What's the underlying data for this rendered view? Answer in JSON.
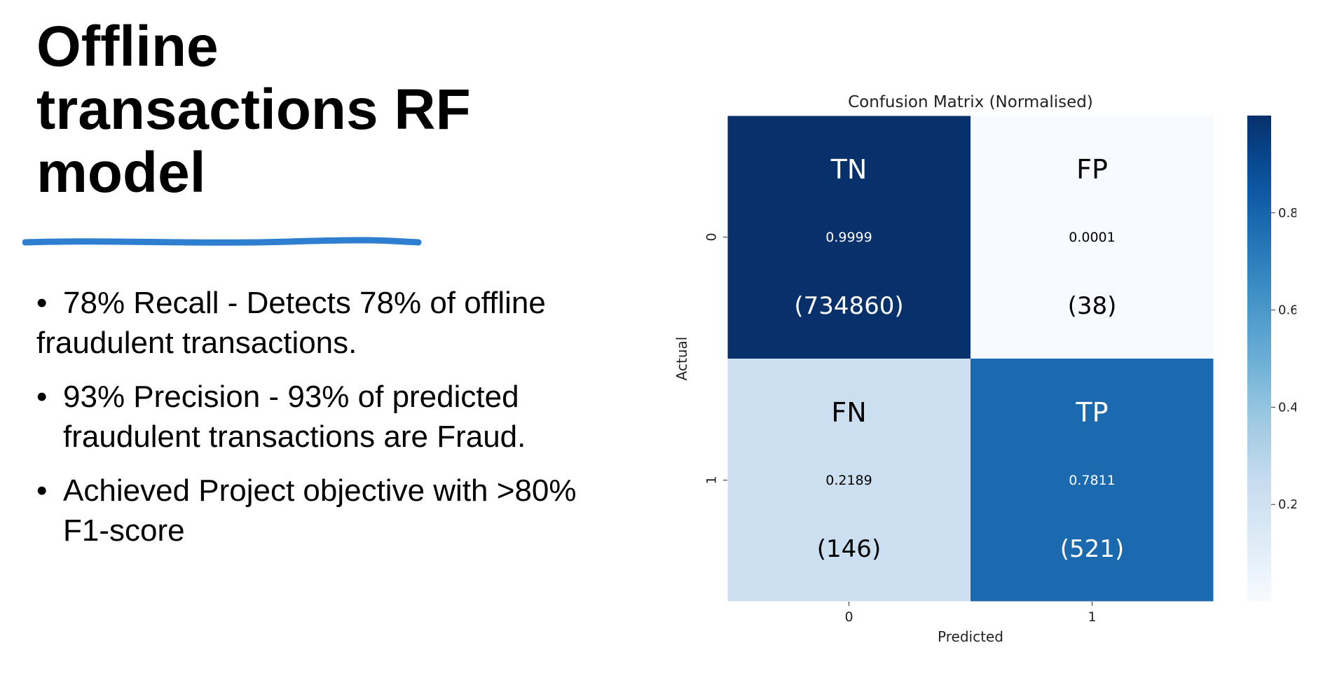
{
  "slide": {
    "title": "Offline transactions RF model",
    "bullets": [
      {
        "marker": "•",
        "text": "78% Recall - Detects 78% of offline fraudulent transactions."
      },
      {
        "marker": "•",
        "text": "93% Precision - 93% of predicted fraudulent transactions are Fraud."
      },
      {
        "marker": "•",
        "text": "Achieved Project objective with >80% F1-score"
      }
    ],
    "accent_color": "#2e7fcf"
  },
  "chart_data": {
    "type": "heatmap",
    "title": "Confusion Matrix (Normalised)",
    "xlabel": "Predicted",
    "ylabel": "Actual",
    "x_categories": [
      "0",
      "1"
    ],
    "y_categories": [
      "0",
      "1"
    ],
    "values": [
      [
        0.9999,
        0.0001
      ],
      [
        0.2189,
        0.7811
      ]
    ],
    "cell_labels": [
      [
        "TN",
        "FP"
      ],
      [
        "FN",
        "TP"
      ]
    ],
    "counts": [
      [
        "(734860)",
        "(38)"
      ],
      [
        "(146)",
        "(521)"
      ]
    ],
    "colorbar": {
      "ticks": [
        "0.2",
        "0.4",
        "0.6",
        "0.8"
      ],
      "tick_values": [
        0.2,
        0.4,
        0.6,
        0.8
      ],
      "range": [
        0.0001,
        0.9999
      ]
    },
    "colormap": "Blues",
    "grid": false,
    "legend": "colorbar-right"
  }
}
